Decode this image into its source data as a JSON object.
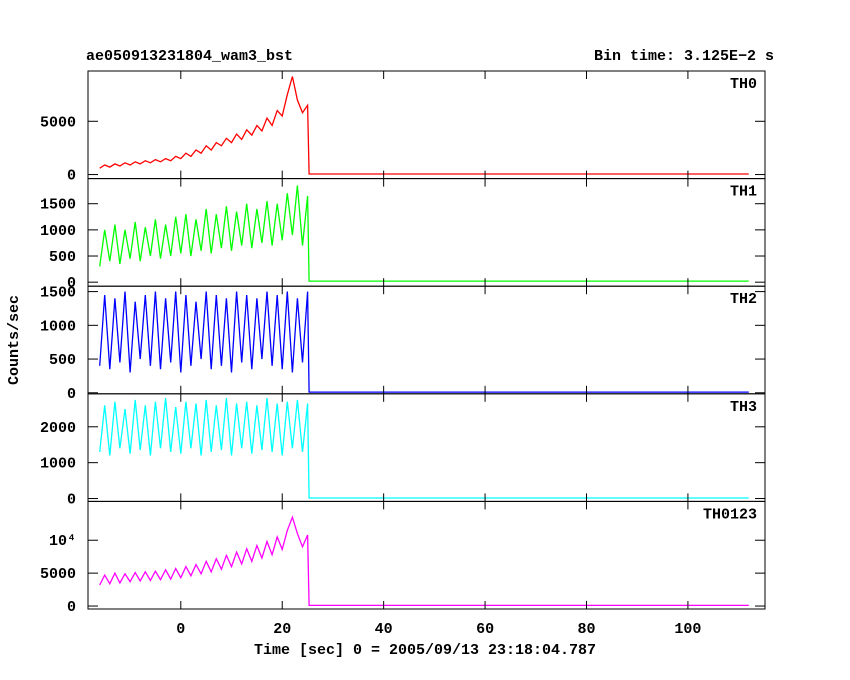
{
  "title": "ae050913231804_wam3_bst",
  "bin_time": "Bin time: 3.125E−2 s",
  "x_label": "Time [sec] 0 = 2005/09/13 23:18:04.787",
  "y_label": "Counts/sec",
  "chart_data": [
    {
      "type": "line",
      "legend": "upper right",
      "x": [
        -16,
        -15,
        -14,
        -13,
        -12,
        -11,
        -10,
        -9,
        -8,
        -7,
        -6,
        -5,
        -4,
        -3,
        -2,
        -1,
        0,
        1,
        2,
        3,
        4,
        5,
        6,
        7,
        8,
        9,
        10,
        11,
        12,
        13,
        14,
        15,
        16,
        17,
        18,
        19,
        20,
        21,
        22,
        23,
        24,
        25,
        25.3,
        112
      ],
      "xlim": [
        -18.3,
        115.2
      ],
      "xticks": [
        0,
        20,
        40,
        60,
        80,
        100
      ],
      "ylim": [
        -380,
        9720
      ],
      "yticks": [
        0,
        5000
      ],
      "series": [
        {
          "name": "TH0",
          "color": "#ff0000",
          "values": [
            600,
            900,
            700,
            1000,
            800,
            1100,
            900,
            1200,
            1000,
            1300,
            1100,
            1400,
            1200,
            1500,
            1300,
            1700,
            1500,
            2000,
            1700,
            2300,
            2000,
            2700,
            2300,
            3000,
            2700,
            3400,
            3000,
            3800,
            3300,
            4200,
            3700,
            4600,
            4100,
            5300,
            4600,
            6000,
            5500,
            7500,
            9200,
            7000,
            5800,
            6500,
            50,
            50
          ]
        }
      ]
    },
    {
      "type": "line",
      "legend": "upper right",
      "x": [
        -16,
        -15,
        -14,
        -13,
        -12,
        -11,
        -10,
        -9,
        -8,
        -7,
        -6,
        -5,
        -4,
        -3,
        -2,
        -1,
        0,
        1,
        2,
        3,
        4,
        5,
        6,
        7,
        8,
        9,
        10,
        11,
        12,
        13,
        14,
        15,
        16,
        17,
        18,
        19,
        20,
        21,
        22,
        23,
        24,
        25,
        25.3,
        112
      ],
      "xlim": [
        -18.3,
        115.2
      ],
      "xticks": [
        0,
        20,
        40,
        60,
        80,
        100
      ],
      "ylim": [
        -77,
        1980
      ],
      "yticks": [
        0,
        500,
        1000,
        1500
      ],
      "series": [
        {
          "name": "TH1",
          "color": "#00ff00",
          "values": [
            300,
            1000,
            400,
            1100,
            350,
            1000,
            450,
            1150,
            400,
            1050,
            500,
            1200,
            450,
            1100,
            500,
            1250,
            550,
            1300,
            500,
            1200,
            600,
            1400,
            550,
            1300,
            650,
            1450,
            600,
            1350,
            700,
            1500,
            650,
            1400,
            750,
            1550,
            700,
            1500,
            800,
            1700,
            900,
            1850,
            700,
            1650,
            20,
            20
          ]
        }
      ]
    },
    {
      "type": "line",
      "legend": "upper right",
      "x": [
        -16,
        -15,
        -14,
        -13,
        -12,
        -11,
        -10,
        -9,
        -8,
        -7,
        -6,
        -5,
        -4,
        -3,
        -2,
        -1,
        0,
        1,
        2,
        3,
        4,
        5,
        6,
        7,
        8,
        9,
        10,
        11,
        12,
        13,
        14,
        15,
        16,
        17,
        18,
        19,
        20,
        21,
        22,
        23,
        24,
        25,
        25.3,
        112
      ],
      "xlim": [
        -18.3,
        115.2
      ],
      "xticks": [
        0,
        20,
        40,
        60,
        80,
        100
      ],
      "ylim": [
        -15,
        1580
      ],
      "yticks": [
        0,
        500,
        1000,
        1500
      ],
      "series": [
        {
          "name": "TH2",
          "color": "#0000ff",
          "values": [
            400,
            1450,
            350,
            1400,
            450,
            1500,
            300,
            1350,
            500,
            1450,
            400,
            1500,
            350,
            1400,
            450,
            1500,
            300,
            1450,
            400,
            1350,
            500,
            1500,
            350,
            1450,
            400,
            1400,
            300,
            1500,
            450,
            1450,
            350,
            1400,
            500,
            1500,
            400,
            1450,
            350,
            1500,
            300,
            1400,
            450,
            1500,
            10,
            10
          ]
        }
      ]
    },
    {
      "type": "line",
      "legend": "upper right",
      "x": [
        -16,
        -15,
        -14,
        -13,
        -12,
        -11,
        -10,
        -9,
        -8,
        -7,
        -6,
        -5,
        -4,
        -3,
        -2,
        -1,
        0,
        1,
        2,
        3,
        4,
        5,
        6,
        7,
        8,
        9,
        10,
        11,
        12,
        13,
        14,
        15,
        16,
        17,
        18,
        19,
        20,
        21,
        22,
        23,
        24,
        25,
        25.3,
        112
      ],
      "xlim": [
        -18.3,
        115.2
      ],
      "xticks": [
        0,
        20,
        40,
        60,
        80,
        100
      ],
      "ylim": [
        -80,
        2920
      ],
      "yticks": [
        0,
        1000,
        2000
      ],
      "series": [
        {
          "name": "TH3",
          "color": "#00ffff",
          "values": [
            1300,
            2600,
            1200,
            2700,
            1400,
            2500,
            1250,
            2750,
            1350,
            2600,
            1200,
            2700,
            1400,
            2800,
            1300,
            2550,
            1250,
            2700,
            1400,
            2650,
            1200,
            2750,
            1300,
            2600,
            1350,
            2800,
            1200,
            2650,
            1400,
            2700,
            1250,
            2600,
            1350,
            2800,
            1300,
            2650,
            1200,
            2700,
            1400,
            2750,
            1300,
            2650,
            15,
            15
          ]
        }
      ]
    },
    {
      "type": "line",
      "legend": "upper right",
      "x": [
        -16,
        -15,
        -14,
        -13,
        -12,
        -11,
        -10,
        -9,
        -8,
        -7,
        -6,
        -5,
        -4,
        -3,
        -2,
        -1,
        0,
        1,
        2,
        3,
        4,
        5,
        6,
        7,
        8,
        9,
        10,
        11,
        12,
        13,
        14,
        15,
        16,
        17,
        18,
        19,
        20,
        21,
        22,
        23,
        24,
        25,
        25.3,
        112
      ],
      "xlim": [
        -18.3,
        115.2
      ],
      "xticks": [
        0,
        20,
        40,
        60,
        80,
        100
      ],
      "ylim": [
        -450,
        15900
      ],
      "yticks": [
        0,
        5000,
        {
          "value": 10000,
          "label": "10⁴"
        }
      ],
      "series": [
        {
          "name": "TH0123",
          "color": "#ff00ff",
          "values": [
            3200,
            4700,
            3400,
            5000,
            3500,
            4900,
            3700,
            5100,
            3800,
            5200,
            3900,
            5300,
            4000,
            5500,
            4100,
            5700,
            4300,
            6000,
            4600,
            6300,
            4900,
            6800,
            5200,
            7200,
            5600,
            7700,
            6000,
            8200,
            6400,
            8700,
            6800,
            9200,
            7300,
            9800,
            7800,
            10500,
            8600,
            11500,
            13500,
            11000,
            9000,
            10800,
            100,
            100
          ]
        }
      ]
    }
  ]
}
